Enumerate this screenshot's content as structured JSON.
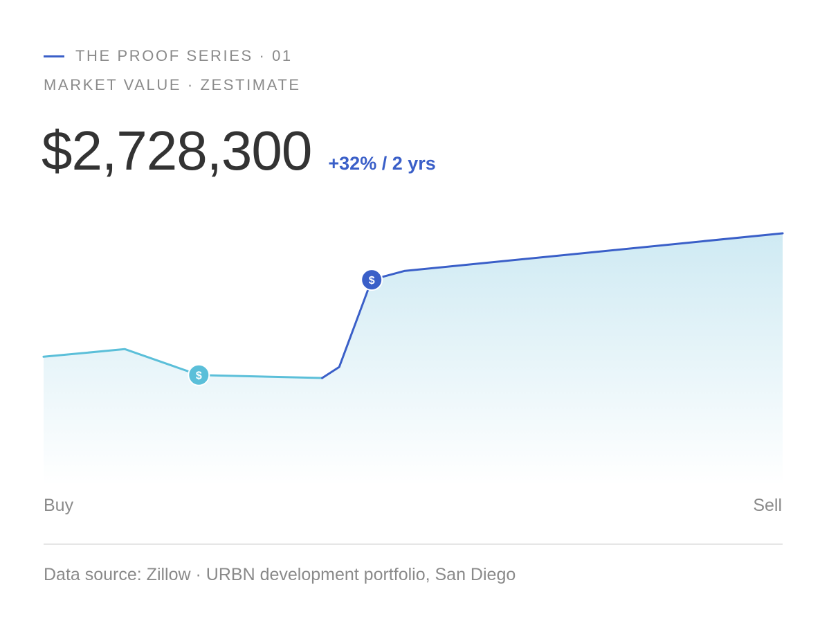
{
  "header": {
    "series_label": "THE PROOF SERIES · 01",
    "subtitle": "MARKET VALUE · ZESTIMATE",
    "value": "$2,728,300",
    "change": "+32% / 2 yrs"
  },
  "footer": {
    "source": "Data source: Zillow · URBN development portfolio, San Diego"
  },
  "colors": {
    "accent_blue": "#3a5fc8",
    "accent_cyan": "#5bbfd9",
    "area_top": "#cfeaf3",
    "area_bottom": "#ffffff"
  },
  "chart_data": {
    "type": "area",
    "title": "",
    "xlabel": "",
    "ylabel": "",
    "x_tick_labels": [
      "Buy",
      "Sell"
    ],
    "grid": false,
    "legend": "none",
    "x": [
      0,
      0.11,
      0.21,
      0.377,
      0.4,
      0.444,
      0.488,
      1.0
    ],
    "values": [
      0.495,
      0.526,
      0.42,
      0.408,
      0.453,
      0.81,
      0.846,
      1.0
    ],
    "segments": [
      {
        "name": "",
        "from_index": 0,
        "to_index": 3,
        "color": "#5bbfd9"
      },
      {
        "name": "",
        "from_index": 3,
        "to_index": 7,
        "color": "#3a5fc8"
      }
    ],
    "markers": [
      {
        "x": 0.21,
        "y": 0.42,
        "label": "$",
        "color": "#5bbfd9"
      },
      {
        "x": 0.444,
        "y": 0.81,
        "label": "$",
        "color": "#3a5fc8"
      }
    ],
    "ylim": [
      0,
      1
    ]
  }
}
